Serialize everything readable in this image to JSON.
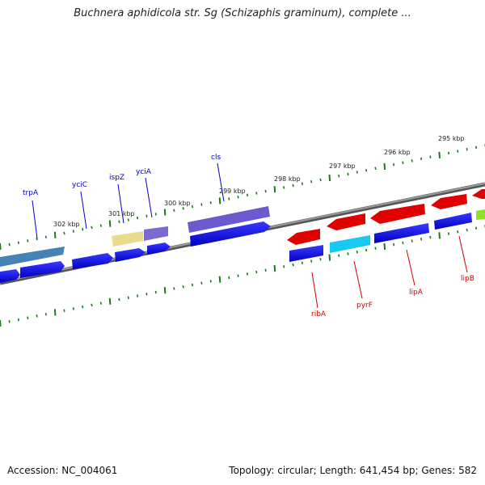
{
  "title": "Buchnera aphidicola str. Sg (Schizaphis graminum), complete ...",
  "footer": {
    "accession": "Accession: NC_004061",
    "summary": "Topology: circular; Length: 641,454 bp; Genes: 582"
  },
  "scale_labels": [
    "302 kbp",
    "301 kbp",
    "300 kbp",
    "299 kbp",
    "298 kbp",
    "297 kbp",
    "296 kbp",
    "295 kbp"
  ],
  "gene_labels": [
    {
      "name": "trpA",
      "strand": "top",
      "color": "#0000c8"
    },
    {
      "name": "yciC",
      "strand": "top",
      "color": "#0000c8"
    },
    {
      "name": "ispZ",
      "strand": "top",
      "color": "#0000c8"
    },
    {
      "name": "yciA",
      "strand": "top",
      "color": "#0000c8"
    },
    {
      "name": "cls",
      "strand": "top",
      "color": "#0000c8"
    },
    {
      "name": "ribA",
      "strand": "bottom",
      "color": "#d40000"
    },
    {
      "name": "pyrF",
      "strand": "bottom",
      "color": "#d40000"
    },
    {
      "name": "lipA",
      "strand": "bottom",
      "color": "#d40000"
    },
    {
      "name": "lipB",
      "strand": "bottom",
      "color": "#d40000"
    }
  ],
  "colors": {
    "backbone": "#808080",
    "ticks": "#1a7a1a",
    "forward_gene": "#0000e0",
    "reverse_gene": "#e00000",
    "cog_steelblue": "#4682b4",
    "cog_purple": "#6a5acd",
    "cog_khaki": "#e8dc8c",
    "cog_cyan": "#19c8f0",
    "cog_lime": "#8ee02a"
  }
}
